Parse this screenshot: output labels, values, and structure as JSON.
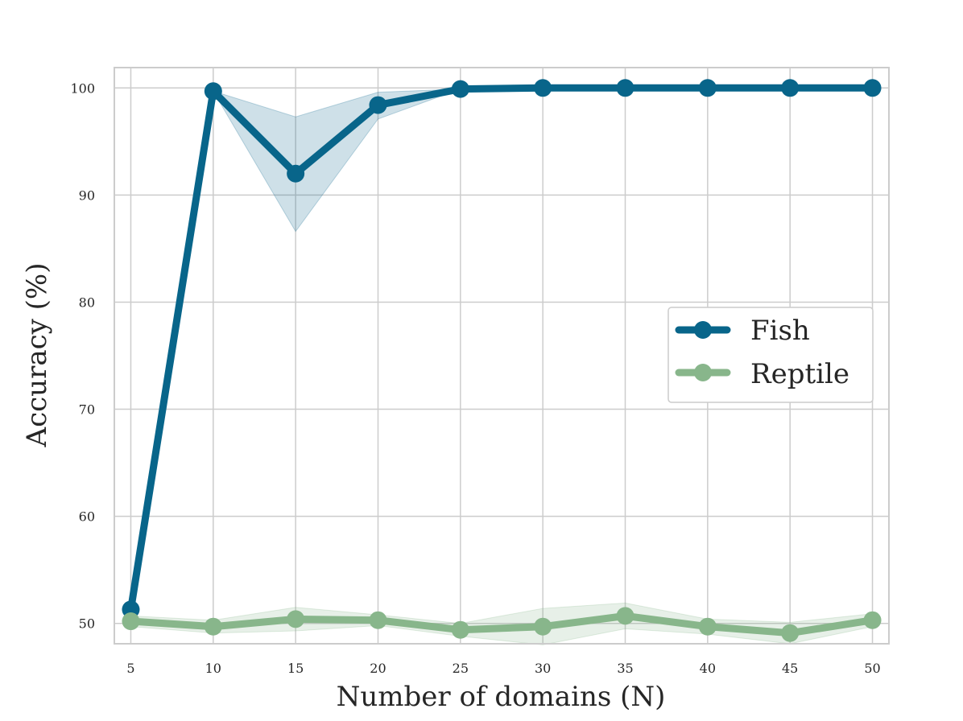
{
  "chart_data": {
    "type": "line",
    "xlabel": "Number of domains (N)",
    "ylabel": "Accuracy (%)",
    "x": [
      5,
      10,
      15,
      20,
      25,
      30,
      35,
      40,
      45,
      50
    ],
    "xlim": [
      4.0,
      51.0
    ],
    "ylim": [
      48.1,
      101.9
    ],
    "xticks": [
      "5",
      "10",
      "15",
      "20",
      "25",
      "30",
      "35",
      "40",
      "45",
      "50"
    ],
    "yticks": [
      "50",
      "60",
      "70",
      "80",
      "90",
      "100"
    ],
    "grid": true,
    "legend_position": "center-right",
    "series": [
      {
        "name": "Fish",
        "color": "#08658a",
        "values": [
          51.3,
          99.7,
          92.0,
          98.4,
          99.9,
          100.0,
          100.0,
          100.0,
          100.0,
          100.0
        ],
        "lower": [
          51.3,
          99.7,
          86.6,
          97.1,
          99.9,
          100.0,
          100.0,
          100.0,
          100.0,
          100.0
        ],
        "upper": [
          51.3,
          99.7,
          97.3,
          99.6,
          99.9,
          100.0,
          100.0,
          100.0,
          100.0,
          100.0
        ]
      },
      {
        "name": "Reptile",
        "color": "#88b68b",
        "values": [
          50.2,
          49.7,
          50.4,
          50.3,
          49.4,
          49.7,
          50.7,
          49.7,
          49.1,
          50.3
        ],
        "lower": [
          49.7,
          49.1,
          49.3,
          49.8,
          48.8,
          48.0,
          49.5,
          49.0,
          48.1,
          49.7
        ],
        "upper": [
          50.7,
          50.3,
          51.5,
          50.8,
          50.0,
          51.4,
          51.9,
          50.4,
          50.1,
          50.9
        ]
      }
    ]
  }
}
